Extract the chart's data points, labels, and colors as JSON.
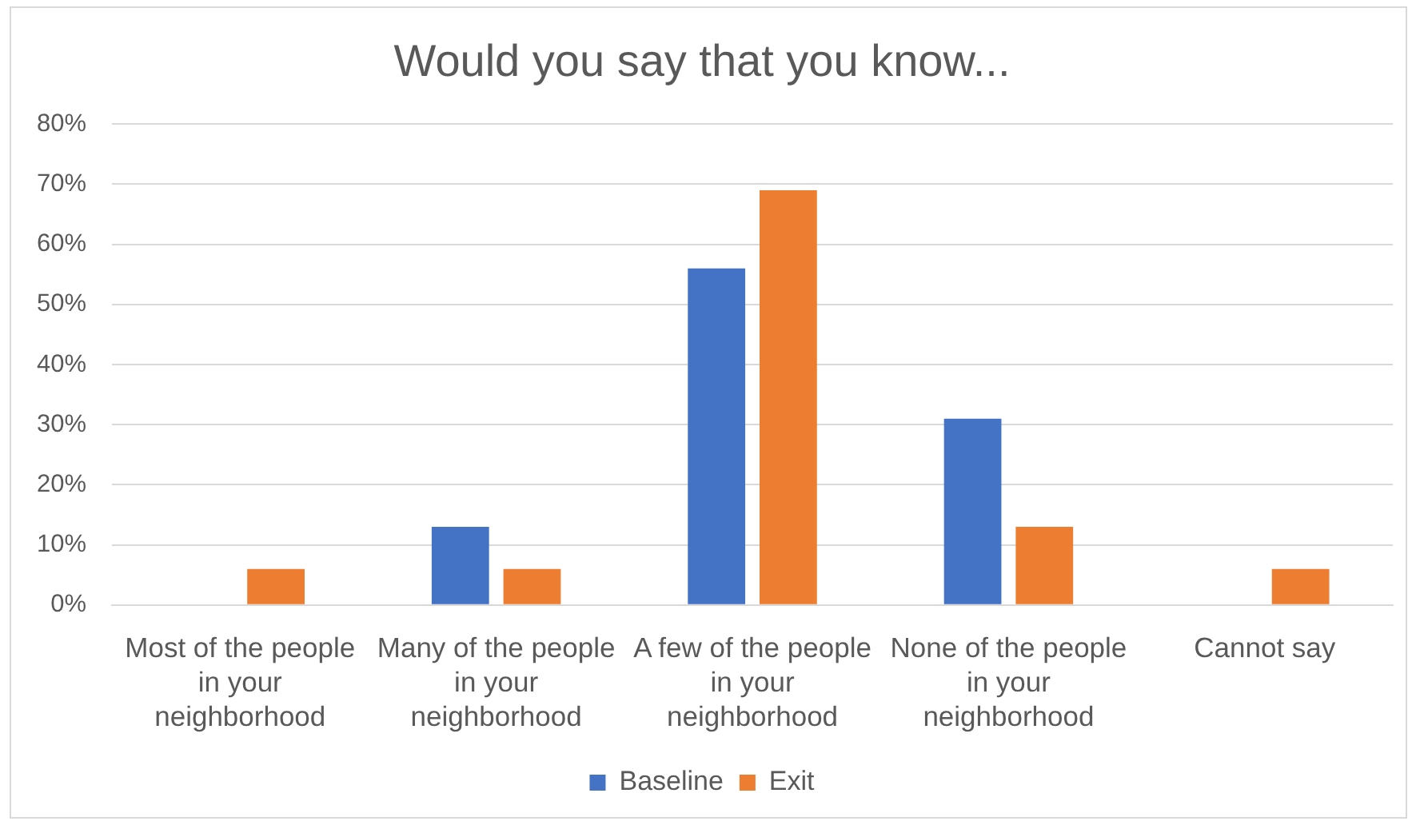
{
  "chart_data": {
    "type": "bar",
    "title": "Would you say that you know...",
    "categories": [
      "Most of the people in your neighborhood",
      "Many of the people in your neighborhood",
      "A few of the people in your neighborhood",
      "None of the people in your neighborhood",
      "Cannot say"
    ],
    "series": [
      {
        "name": "Baseline",
        "color": "#4472c4",
        "values": [
          0,
          13,
          56,
          31,
          0
        ]
      },
      {
        "name": "Exit",
        "color": "#ed7d31",
        "values": [
          6,
          6,
          69,
          13,
          6
        ]
      }
    ],
    "ylim": [
      0,
      80
    ],
    "yticks": [
      {
        "value": 0,
        "label": "0%"
      },
      {
        "value": 10,
        "label": "10%"
      },
      {
        "value": 20,
        "label": "20%"
      },
      {
        "value": 30,
        "label": "30%"
      },
      {
        "value": 40,
        "label": "40%"
      },
      {
        "value": 50,
        "label": "50%"
      },
      {
        "value": 60,
        "label": "60%"
      },
      {
        "value": 70,
        "label": "70%"
      },
      {
        "value": 80,
        "label": "80%"
      }
    ],
    "grid": "y",
    "legend": "bottom"
  }
}
